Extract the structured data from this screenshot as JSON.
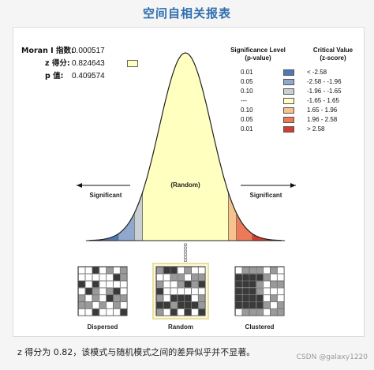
{
  "title": "空间自相关报表",
  "stats": {
    "moran_label": "Moran I 指数:",
    "moran_value": "0.000517",
    "z_label": "z 得分:",
    "z_value": "0.824643",
    "p_label": "p 值:",
    "p_value": "0.409574"
  },
  "chart_data": {
    "type": "area",
    "title": "",
    "xlabel": "",
    "ylabel": "",
    "curve": "standard normal distribution of z-scores",
    "observed_z": 0.824643,
    "regions": [
      {
        "z_range": [
          -4,
          -2.58
        ],
        "color": "#4f78b6"
      },
      {
        "z_range": [
          -2.58,
          -1.96
        ],
        "color": "#8fa8cc"
      },
      {
        "z_range": [
          -1.96,
          -1.65
        ],
        "color": "#c9d0d4"
      },
      {
        "z_range": [
          -1.65,
          1.65
        ],
        "color": "#ffffc0"
      },
      {
        "z_range": [
          1.65,
          1.96
        ],
        "color": "#f7c38d"
      },
      {
        "z_range": [
          1.96,
          2.58
        ],
        "color": "#ec7a58"
      },
      {
        "z_range": [
          2.58,
          4
        ],
        "color": "#d73a2e"
      }
    ],
    "annotations": {
      "significant_left": "Significant",
      "random": "(Random)",
      "significant_right": "Significant"
    },
    "legend": {
      "significance_header": "Significance Level\n(p-value)",
      "critical_header": "Critical Value\n(z-score)",
      "rows": [
        {
          "p": "0.01",
          "z": "< -2.58",
          "color": "#4f78b6"
        },
        {
          "p": "0.05",
          "z": "-2.58 - -1.96",
          "color": "#8fa8cc"
        },
        {
          "p": "0.10",
          "z": "-1.96 - -1.65",
          "color": "#c9d0d4"
        },
        {
          "p": "---",
          "z": "-1.65 - 1.65",
          "color": "#ffffc0"
        },
        {
          "p": "0.10",
          "z": "1.65 - 1.96",
          "color": "#f7c38d"
        },
        {
          "p": "0.05",
          "z": "1.96 - 2.58",
          "color": "#ec7a58"
        },
        {
          "p": "0.01",
          "z": "> 2.58",
          "color": "#d73a2e"
        }
      ]
    },
    "patterns": [
      {
        "label": "Dispersed",
        "selected": false
      },
      {
        "label": "Random",
        "selected": true
      },
      {
        "label": "Clustered",
        "selected": false
      }
    ]
  },
  "caption": "z 得分为 0.82，该模式与随机模式之间的差异似乎并不显著。",
  "watermark": "CSDN @galaxy1220",
  "colors": {
    "title": "#2f6fae",
    "selected_border": "#e8e0a0"
  }
}
